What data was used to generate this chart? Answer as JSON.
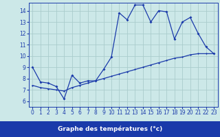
{
  "title": "Graphe des températures (°c)",
  "background_color": "#cce8e8",
  "grid_color": "#aacccc",
  "line_color": "#1a3aaa",
  "xlabel_bg": "#1a3aaa",
  "xlabel_fg": "#ffffff",
  "x_line1": [
    0,
    1,
    2,
    3,
    4,
    5,
    6,
    7,
    8,
    9,
    10,
    11,
    12,
    13,
    14,
    15,
    16,
    17,
    18,
    19,
    20,
    21,
    22,
    23
  ],
  "y_line1": [
    9.0,
    7.7,
    7.6,
    7.3,
    6.2,
    8.3,
    7.6,
    7.8,
    7.8,
    8.8,
    9.9,
    13.8,
    13.2,
    14.5,
    14.5,
    13.0,
    14.0,
    13.9,
    11.5,
    13.0,
    13.4,
    12.0,
    10.8,
    10.2
  ],
  "x_line2": [
    0,
    1,
    2,
    3,
    4,
    5,
    6,
    7,
    8,
    9,
    10,
    11,
    12,
    13,
    14,
    15,
    16,
    17,
    18,
    19,
    20,
    21,
    22,
    23
  ],
  "y_line2": [
    7.4,
    7.2,
    7.1,
    7.0,
    6.9,
    7.2,
    7.4,
    7.6,
    7.8,
    8.0,
    8.2,
    8.4,
    8.6,
    8.8,
    9.0,
    9.2,
    9.4,
    9.6,
    9.8,
    9.9,
    10.1,
    10.2,
    10.2,
    10.2
  ],
  "xlim": [
    -0.5,
    23.5
  ],
  "ylim": [
    5.5,
    14.7
  ],
  "yticks": [
    6,
    7,
    8,
    9,
    10,
    11,
    12,
    13,
    14
  ],
  "xticks": [
    0,
    1,
    2,
    3,
    4,
    5,
    6,
    7,
    8,
    9,
    10,
    11,
    12,
    13,
    14,
    15,
    16,
    17,
    18,
    19,
    20,
    21,
    22,
    23
  ],
  "tick_fontsize": 5.5,
  "label_fontsize": 6.5
}
